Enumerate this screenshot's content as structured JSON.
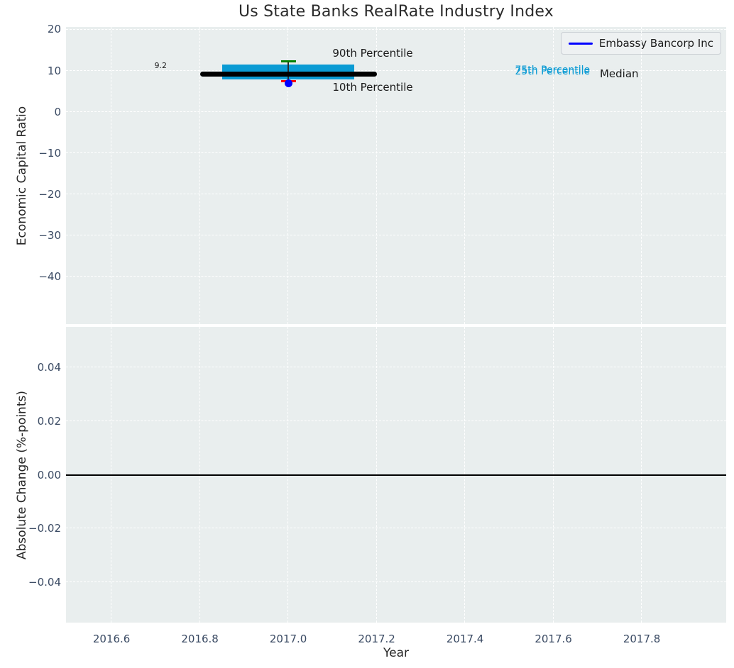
{
  "title": "Us State Banks RealRate Industry Index",
  "legend": {
    "label": "Embassy Bancorp Inc",
    "line_color": "#0000ff",
    "position": "upper right"
  },
  "colors": {
    "figure_bg": "#ffffff",
    "axes_bg": "#e9eeee",
    "grid": "#ffffff",
    "tick_label": "#3a4a63",
    "text": "#262626",
    "percentile_band": "#0a9bd4",
    "median_line": "#000000",
    "whisker": "#2b2b2b",
    "p90_cap": "#008000",
    "p10_cap": "#ff0000",
    "company_marker": "#0000ff",
    "zero_line": "#000000"
  },
  "chart_data": [
    {
      "type": "scatter",
      "subplot": "top",
      "title": "Us State Banks RealRate Industry Index",
      "xlabel": "Year",
      "ylabel": "Economic Capital Ratio",
      "xlim": [
        2016.497,
        2017.991
      ],
      "ylim": [
        -51.6,
        20.6
      ],
      "grid": true,
      "legend_position": "upper right",
      "xticks": [
        2016.6,
        2016.8,
        2017.0,
        2017.2,
        2017.4,
        2017.6,
        2017.8
      ],
      "xtick_labels": [
        "2016.6",
        "2016.8",
        "2017.0",
        "2017.2",
        "2017.4",
        "2017.6",
        "2017.8"
      ],
      "yticks": [
        20,
        10,
        0,
        -10,
        -20,
        -30,
        -40
      ],
      "ytick_labels": [
        "20",
        "10",
        "0",
        "−10",
        "−20",
        "−30",
        "−40"
      ],
      "series": [
        {
          "name": "Embassy Bancorp Inc",
          "x": [
            2017.0
          ],
          "y": [
            6.9
          ],
          "marker": "circle",
          "color": "#0000ff"
        }
      ],
      "industry_box": {
        "center_year": 2017.0,
        "p90": 12.2,
        "p75": 11.5,
        "median": 9.2,
        "p25": 7.9,
        "p10": 7.4,
        "median_value_label": "9.2",
        "box_half_width_years": 0.15,
        "median_half_width_years": 0.2,
        "cap_half_width_years": 0.017
      },
      "annotations": [
        {
          "text": "9.2",
          "x": 2016.711,
          "y": 11.12,
          "anchor": "middle",
          "size": 11,
          "color": "#1a1a1a"
        },
        {
          "text": "90th Percentile",
          "x": 2017.1,
          "y": 14.22,
          "anchor": "start",
          "size": 15,
          "color": "#1a1a1a"
        },
        {
          "text": "10th Percentile",
          "x": 2017.1,
          "y": 5.95,
          "anchor": "start",
          "size": 15,
          "color": "#1a1a1a"
        },
        {
          "text": "75th Percentile",
          "x": 2017.513,
          "y": 10.05,
          "anchor": "start",
          "size": 14,
          "color": "#0a9bd4"
        },
        {
          "text": "25th Percentile",
          "x": 2017.513,
          "y": 9.7,
          "anchor": "start",
          "size": 14,
          "color": "#0a9bd4"
        },
        {
          "text": "Median",
          "x": 2017.705,
          "y": 9.2,
          "anchor": "start",
          "size": 15,
          "color": "#1a1a1a"
        }
      ]
    },
    {
      "type": "line",
      "subplot": "bottom",
      "xlabel": "Year",
      "ylabel": "Absolute Change (%-points)",
      "xlim": [
        2016.497,
        2017.991
      ],
      "ylim": [
        -0.05505,
        0.05505
      ],
      "grid": true,
      "xticks": [
        2016.6,
        2016.8,
        2017.0,
        2017.2,
        2017.4,
        2017.6,
        2017.8
      ],
      "xtick_labels": [
        "2016.6",
        "2016.8",
        "2017.0",
        "2017.2",
        "2017.4",
        "2017.6",
        "2017.8"
      ],
      "yticks": [
        0.04,
        0.02,
        0.0,
        -0.02,
        -0.04
      ],
      "ytick_labels": [
        "0.04",
        "0.02",
        "0.00",
        "−0.02",
        "−0.04"
      ],
      "zero_line": 0.0,
      "series": []
    }
  ]
}
